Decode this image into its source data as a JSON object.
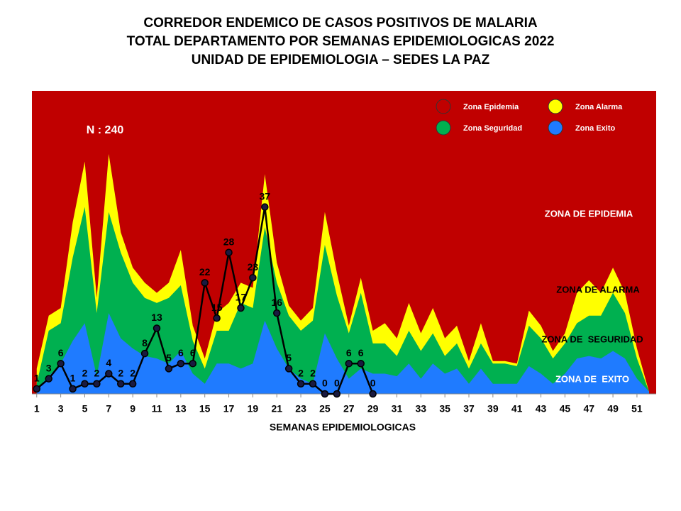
{
  "chart_data": {
    "type": "endemic-corridor",
    "title": [
      "CORREDOR ENDEMICO DE CASOS POSITIVOS DE MALARIA",
      "TOTAL DEPARTAMENTO POR SEMANAS EPIDEMIOLOGICAS 2022",
      "UNIDAD DE EPIDEMIOLOGIA – SEDES LA PAZ"
    ],
    "x_label": "SEMANAS EPIDEMIOLOGICAS",
    "annotation": "N : 240",
    "zone_labels": [
      {
        "text": "ZONA DE EPIDEMIA",
        "color": "#ffffff"
      },
      {
        "text": "ZONA DE ALARMA",
        "color": "#000000"
      },
      {
        "text": "ZONA DE  SEGURIDAD",
        "color": "#000000"
      },
      {
        "text": "ZONA DE  EXITO",
        "color": "#ffffff"
      }
    ],
    "background_zone": {
      "name": "Zona Epidemia",
      "color": "#c00000"
    },
    "x": [
      1,
      2,
      3,
      4,
      5,
      6,
      7,
      8,
      9,
      10,
      11,
      12,
      13,
      14,
      15,
      16,
      17,
      18,
      19,
      20,
      21,
      22,
      23,
      24,
      25,
      26,
      27,
      28,
      29,
      30,
      31,
      32,
      33,
      34,
      35,
      36,
      37,
      38,
      39,
      40,
      41,
      42,
      43,
      44,
      45,
      46,
      47,
      48,
      49,
      50,
      51,
      52
    ],
    "xlim": [
      0.6,
      52.6
    ],
    "xticks": [
      1,
      3,
      5,
      7,
      9,
      11,
      13,
      15,
      17,
      19,
      21,
      23,
      25,
      27,
      29,
      31,
      33,
      35,
      37,
      39,
      41,
      43,
      45,
      47,
      49,
      51
    ],
    "ylim": [
      0,
      60
    ],
    "series": [
      {
        "name": "Zona Alarma",
        "kind": "area",
        "color": "#ffff00",
        "values": [
          5,
          15.5,
          17,
          34,
          46,
          19,
          47.5,
          32,
          25,
          22,
          20,
          22,
          28.5,
          13.5,
          7,
          16,
          18,
          22,
          21,
          43.5,
          26,
          17.5,
          14.5,
          17,
          36,
          24,
          13.5,
          23,
          12.5,
          14,
          11,
          18,
          12,
          17,
          11,
          13.5,
          6.5,
          14,
          6.5,
          6.5,
          6,
          16.5,
          13.5,
          8.5,
          12,
          20,
          22.5,
          20,
          25,
          20,
          9,
          0.5
        ]
      },
      {
        "name": "Zona Seguridad",
        "kind": "area",
        "color": "#00b050",
        "values": [
          2,
          12.5,
          14,
          27,
          37,
          16,
          36,
          28,
          22,
          19,
          18,
          19,
          21.5,
          10.5,
          5,
          12.5,
          12.5,
          18,
          17,
          33,
          22,
          15.5,
          12.5,
          14.5,
          29.5,
          19.5,
          12,
          20,
          10,
          10,
          7.5,
          12.5,
          8.5,
          12,
          7.5,
          10,
          5,
          10,
          6,
          6,
          5.5,
          13.5,
          11,
          7,
          10,
          14,
          15.5,
          15.5,
          20,
          16,
          7,
          0.5
        ]
      },
      {
        "name": "Zona Exito",
        "kind": "area",
        "color": "#1f7bff",
        "values": [
          1,
          3.5,
          6,
          10.5,
          14,
          3.5,
          16,
          11,
          9,
          7.5,
          7,
          6,
          8.5,
          4,
          2,
          6,
          6,
          5,
          6,
          14.5,
          9,
          5,
          3,
          2,
          12,
          7,
          3,
          5,
          4,
          4,
          3.5,
          6,
          3,
          6,
          4,
          5,
          2,
          5,
          2,
          2,
          2,
          5.5,
          4,
          2,
          4,
          7,
          7.5,
          7,
          8.5,
          7,
          3,
          0.5
        ]
      },
      {
        "name": "Casos",
        "kind": "line",
        "color": "#000000",
        "values": [
          1,
          3,
          6,
          1,
          2,
          2,
          4,
          2,
          2,
          8,
          13,
          5,
          6,
          6,
          22,
          15,
          28,
          17,
          23,
          37,
          16,
          5,
          2,
          2,
          0,
          0,
          6,
          6,
          0,
          null,
          null,
          null,
          null,
          null,
          null,
          null,
          null,
          null,
          null,
          null,
          null,
          null,
          null,
          null,
          null,
          null,
          null,
          null,
          null,
          null,
          null,
          null
        ]
      }
    ]
  }
}
